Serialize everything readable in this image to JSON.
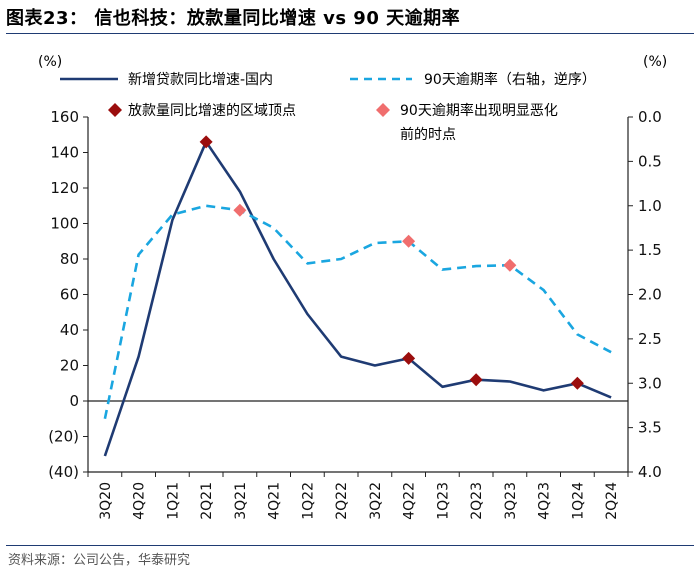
{
  "title": "图表23： 信也科技：放款量同比增速 vs 90 天逾期率",
  "source": "资料来源：公司公告，华泰研究",
  "chart_data": {
    "type": "line",
    "categories": [
      "3Q20",
      "4Q20",
      "1Q21",
      "2Q21",
      "3Q21",
      "4Q21",
      "1Q22",
      "2Q22",
      "3Q22",
      "4Q22",
      "1Q23",
      "2Q23",
      "3Q23",
      "4Q23",
      "1Q24",
      "2Q24"
    ],
    "left_axis": {
      "label": "(%)",
      "ylim": [
        -40,
        160
      ],
      "ticks": [
        "(40)",
        "(20)",
        "0",
        "20",
        "40",
        "60",
        "80",
        "100",
        "120",
        "140",
        "160"
      ],
      "tick_values": [
        -40,
        -20,
        0,
        20,
        40,
        60,
        80,
        100,
        120,
        140,
        160
      ]
    },
    "right_axis": {
      "label": "(%)",
      "ylim": [
        4.0,
        0.0
      ],
      "reversed": true,
      "ticks": [
        "0.0",
        "0.5",
        "1.0",
        "1.5",
        "2.0",
        "2.5",
        "3.0",
        "3.5",
        "4.0"
      ],
      "tick_values": [
        0.0,
        0.5,
        1.0,
        1.5,
        2.0,
        2.5,
        3.0,
        3.5,
        4.0
      ]
    },
    "series": [
      {
        "name": "新增贷款同比增速-国内",
        "axis": "left",
        "style": "solid",
        "color": "#1f3b73",
        "values": [
          -31,
          25,
          102,
          146,
          118,
          80,
          49,
          25,
          20,
          24,
          8,
          12,
          11,
          6,
          10,
          2
        ]
      },
      {
        "name": "90天逾期率（右轴，逆序）",
        "axis": "right",
        "style": "dashed",
        "color": "#1aa6e0",
        "values": [
          3.4,
          1.55,
          1.1,
          1.0,
          1.05,
          1.25,
          1.65,
          1.6,
          1.42,
          1.4,
          1.72,
          1.68,
          1.67,
          1.95,
          2.45,
          2.65
        ]
      },
      {
        "name": "放款量同比增速的区域顶点",
        "type": "markers",
        "axis": "left",
        "marker": "diamond",
        "color": "#9b0d0d",
        "points": [
          [
            "2Q21",
            146
          ],
          [
            "4Q22",
            24
          ],
          [
            "2Q23",
            12
          ],
          [
            "1Q24",
            10
          ]
        ]
      },
      {
        "name": "90天逾期率出现明显恶化前的时点",
        "type": "markers",
        "axis": "right",
        "marker": "diamond",
        "color": "#f06e6e",
        "points": [
          [
            "3Q21",
            1.05
          ],
          [
            "4Q22",
            1.4
          ],
          [
            "3Q23",
            1.67
          ]
        ]
      }
    ],
    "legend": {
      "entries": [
        "新增贷款同比增速-国内",
        "90天逾期率（右轴，逆序）",
        "放款量同比增速的区域顶点",
        "90天逾期率出现明显恶化前的时点"
      ],
      "entry4_lines": [
        "90天逾期率出现明显恶化",
        "前的时点"
      ],
      "placement": "top"
    }
  }
}
